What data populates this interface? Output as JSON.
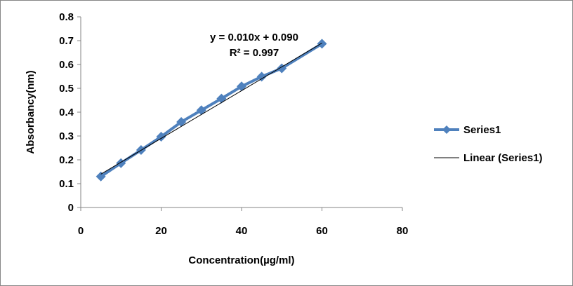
{
  "chart_data": {
    "type": "scatter",
    "title": "",
    "xlabel": "Concentration(µg/ml)",
    "ylabel": "Absorbancy(nm)",
    "xlim": [
      0,
      80
    ],
    "ylim": [
      0,
      0.8
    ],
    "xticks": [
      "0",
      "20",
      "40",
      "60",
      "80"
    ],
    "yticks": [
      "0",
      "0.1",
      "0.2",
      "0.3",
      "0.4",
      "0.5",
      "0.6",
      "0.7",
      "0.8"
    ],
    "grid": false,
    "legend_placement": "right",
    "series": [
      {
        "name": "Series1",
        "color": "#4f81bd",
        "marker": "diamond",
        "x": [
          5,
          10,
          15,
          20,
          25,
          30,
          35,
          40,
          45,
          50,
          60
        ],
        "y": [
          0.13,
          0.186,
          0.241,
          0.297,
          0.359,
          0.408,
          0.457,
          0.508,
          0.549,
          0.584,
          0.687
        ]
      }
    ],
    "trendline": {
      "name": "Linear (Series1)",
      "color": "#000000",
      "slope": 0.01,
      "intercept": 0.09,
      "x_range": [
        5,
        60
      ],
      "equation": "y = 0.010x + 0.090",
      "r_squared": "R² = 0.997"
    }
  }
}
